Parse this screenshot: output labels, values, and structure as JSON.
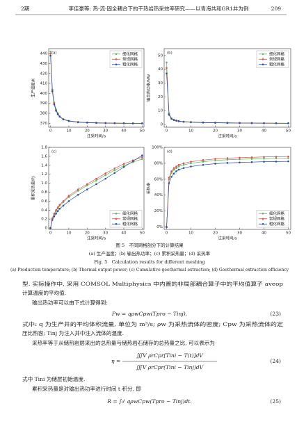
{
  "header": {
    "issue": "2期",
    "title": "李佳豪等: 热-流-固全耦合下的干热岩热采效率研究——以青海共和GR1井为例",
    "page": "209"
  },
  "chart_data": [
    {
      "type": "line",
      "panel": "(a)",
      "ylabel": "生产温度/K",
      "xlabel": "注采时间/a",
      "legend": "upper right",
      "x": [
        0,
        1,
        2,
        3,
        4,
        5,
        7,
        10,
        15,
        20,
        25,
        30,
        35,
        40,
        45,
        50
      ],
      "series": [
        {
          "name": "细化网格",
          "color": "#5cb85c",
          "values": [
            442,
            404,
            391,
            384,
            380,
            377,
            374,
            372.5,
            371.3,
            370.8,
            370.5,
            370.3,
            370.2,
            370.1,
            370,
            370
          ]
        },
        {
          "name": "常规网格",
          "color": "#d9534f",
          "values": [
            440,
            403,
            390,
            383,
            379.5,
            376.8,
            374,
            372.3,
            371.2,
            370.7,
            370.4,
            370.2,
            370.1,
            370,
            369.9,
            369.9
          ]
        },
        {
          "name": "粗化网格",
          "color": "#2c4f9e",
          "values": [
            438,
            402,
            389,
            382.5,
            379,
            376.5,
            373.8,
            372.2,
            371,
            370.6,
            370.3,
            370.1,
            370,
            369.9,
            369.8,
            369.8
          ]
        }
      ],
      "xlim": [
        -1,
        51
      ],
      "ylim": [
        366,
        445
      ],
      "xticks": [
        0,
        10,
        20,
        30,
        40,
        50
      ],
      "yticks": [
        370,
        380,
        390,
        400,
        410,
        420,
        430,
        440
      ]
    },
    {
      "type": "line",
      "panel": "(b)",
      "ylabel": "输出热功率/MW",
      "xlabel": "注采时间/a",
      "legend": "upper right",
      "x": [
        0,
        1,
        2,
        3,
        4,
        5,
        7,
        10,
        15,
        20,
        25,
        30,
        35,
        40,
        45,
        50
      ],
      "series": [
        {
          "name": "细化网格",
          "color": "#5cb85c",
          "values": [
            45,
            8,
            4.5,
            3.4,
            2.9,
            2.5,
            2.1,
            1.8,
            1.5,
            1.3,
            1.2,
            1.1,
            1.05,
            1,
            0.95,
            0.9
          ]
        },
        {
          "name": "常规网格",
          "color": "#d9534f",
          "values": [
            41,
            7.5,
            4.3,
            3.3,
            2.8,
            2.4,
            2.0,
            1.7,
            1.4,
            1.25,
            1.15,
            1.05,
            1,
            0.95,
            0.9,
            0.88
          ]
        },
        {
          "name": "粗化网格",
          "color": "#2c4f9e",
          "values": [
            37,
            7,
            4.1,
            3.2,
            2.7,
            2.3,
            1.9,
            1.6,
            1.35,
            1.2,
            1.1,
            1,
            0.95,
            0.9,
            0.88,
            0.85
          ]
        }
      ],
      "xlim": [
        -1,
        51
      ],
      "ylim": [
        -2,
        55
      ],
      "xticks": [
        0,
        10,
        20,
        30,
        40,
        50
      ],
      "yticks": [
        0,
        10,
        20,
        30,
        40,
        50
      ]
    },
    {
      "type": "line",
      "panel": "(c)",
      "ylabel": "累积采热量/PJ",
      "xlabel": "注采时间/a",
      "legend": "lower right",
      "x": [
        0,
        1,
        2,
        3,
        4,
        5,
        7,
        10,
        15,
        20,
        25,
        30,
        35,
        40,
        45,
        50
      ],
      "series": [
        {
          "name": "细化网格",
          "color": "#5cb85c",
          "values": [
            0,
            0.21,
            0.31,
            0.38,
            0.44,
            0.5,
            0.58,
            0.69,
            0.83,
            0.95,
            1.06,
            1.18,
            1.29,
            1.39,
            1.47,
            1.54
          ]
        },
        {
          "name": "常规网格",
          "color": "#d9534f",
          "values": [
            0,
            0.22,
            0.32,
            0.4,
            0.46,
            0.52,
            0.6,
            0.72,
            0.86,
            0.98,
            1.1,
            1.22,
            1.33,
            1.43,
            1.51,
            1.58
          ]
        },
        {
          "name": "粗化网格",
          "color": "#2c4f9e",
          "values": [
            0,
            0.18,
            0.26,
            0.32,
            0.38,
            0.43,
            0.5,
            0.6,
            0.74,
            0.86,
            0.98,
            1.1,
            1.23,
            1.36,
            1.49,
            1.62
          ]
        }
      ],
      "xlim": [
        -1,
        51
      ],
      "ylim": [
        -0.03,
        1.8
      ],
      "xticks": [
        0,
        10,
        20,
        30,
        40,
        50
      ],
      "yticks": [
        0,
        0.2,
        0.4,
        0.6,
        0.8,
        {
          "value": 1,
          "label": "1.0"
        },
        1.2,
        1.4,
        1.6,
        1.8
      ]
    },
    {
      "type": "line",
      "panel": "(d)",
      "ylabel": "采热率",
      "xlabel": "注采时间/a",
      "legend": "lower right",
      "x": [
        0,
        1,
        2,
        3,
        4,
        5,
        7,
        10,
        15,
        20,
        25,
        30,
        35,
        40,
        45,
        50
      ],
      "series": [
        {
          "name": "细化网格",
          "color": "#5cb85c",
          "values": [
            0,
            60,
            68,
            72,
            74,
            76,
            78,
            80,
            82,
            83.5,
            84.5,
            85,
            85.5,
            86,
            86.3,
            86.5
          ]
        },
        {
          "name": "常规网格",
          "color": "#d9534f",
          "values": [
            0,
            62,
            70,
            74,
            76,
            78,
            80,
            82,
            84,
            85.5,
            86.5,
            87,
            87.5,
            88,
            88.3,
            88.5
          ]
        },
        {
          "name": "粗化网格",
          "color": "#2c4f9e",
          "values": [
            0,
            55,
            63,
            67,
            70,
            72,
            74,
            76,
            78,
            79.5,
            80.5,
            81,
            81.5,
            82,
            82.2,
            82.4
          ]
        }
      ],
      "xlim": [
        -1,
        51
      ],
      "ylim": [
        -3,
        100
      ],
      "xticks": [
        0,
        10,
        20,
        30,
        40,
        50
      ],
      "yticks": [
        {
          "value": 0,
          "label": "0%"
        },
        {
          "value": 20,
          "label": "20%"
        },
        {
          "value": 40,
          "label": "40%"
        },
        {
          "value": 60,
          "label": "60%"
        },
        {
          "value": 80,
          "label": "80%"
        },
        {
          "value": 100,
          "label": "100%"
        }
      ]
    }
  ],
  "figure": {
    "caption_cn": "图 5　不同网格剖分下的计算结果",
    "subcaption_cn": "(a) 生产温度；(b) 输出热功率；(c) 累积采热量；(d) 采热率",
    "caption_en": "Fig. 5　Calculation results for different meshing",
    "subcaption_en": "(a) Production temperature; (b) Thermal output power; (c) Cumulative geothermal extraction; (d) Geothermal extraction efficiency"
  },
  "body": [
    "型. 实际操作中, 采用 COMSOL Multiphysics 中内置的非局部耦合算子中的平均值算子 aveop",
    "计算温度的平均值.",
    "输出热功率可以由下式计算得到:",
    "式中: q 为生产井的平均体积流量, 单位为 m³/s; ρw 为采热流体的密度; Cpw 为采热流体的定",
    "压比热容; Tinj 为注入井中注入流体的温度.",
    "采热率等于从储热岩层采出的总热量与储热岩石储存的总热量之比, 可以表示为",
    "式中 Tini 为储层初始温度.",
    "累积采热量是对输出热功率进行时间 t 积分, 即"
  ],
  "equations": [
    {
      "expr": "Pw = qρwCpw(Tpro − Tinj),",
      "number": "(23)"
    },
    {
      "lhs": "η =",
      "numerator": "∭V ρrCpr[Tini − T(t)]dV",
      "denominator": "∭V ρrCpr(Tini − Tinj)dV",
      "number": "(24)"
    },
    {
      "expr": "R = ∫₀ᵗ qρwCpw(Tpro − Tinj)dt.",
      "number": "(25)"
    }
  ]
}
